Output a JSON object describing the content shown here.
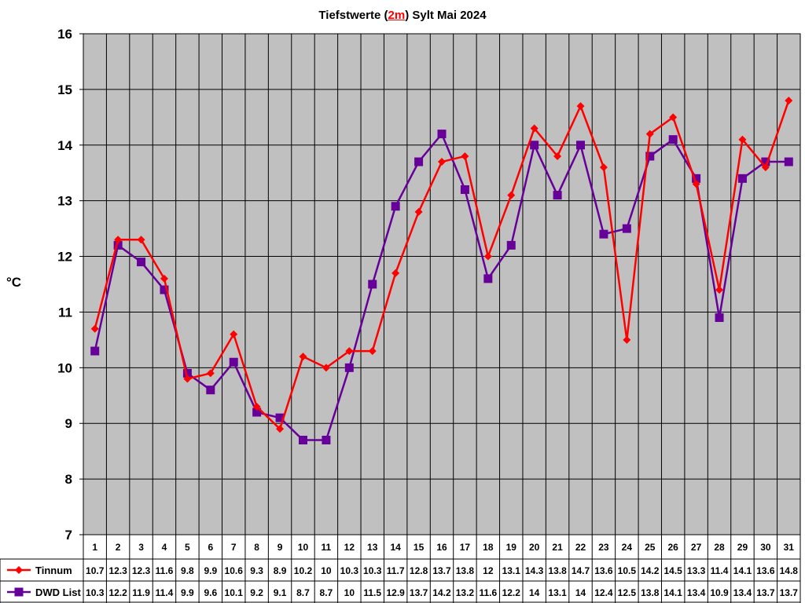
{
  "chart_data": {
    "type": "line",
    "title_parts": [
      "Tiefstwerte (",
      "2m",
      ") Sylt Mai 2024"
    ],
    "ylabel": "°C",
    "xlabel": "",
    "ylim": [
      7,
      16
    ],
    "yticks": [
      7,
      8,
      9,
      10,
      11,
      12,
      13,
      14,
      15,
      16
    ],
    "grid": true,
    "legend_position": "bottom-left (data table)",
    "plot_background": "#c0c0c0",
    "categories": [
      "1",
      "2",
      "3",
      "4",
      "5",
      "6",
      "7",
      "8",
      "9",
      "10",
      "11",
      "12",
      "13",
      "14",
      "15",
      "16",
      "17",
      "18",
      "19",
      "20",
      "21",
      "22",
      "23",
      "24",
      "25",
      "26",
      "27",
      "28",
      "29",
      "30",
      "31"
    ],
    "series": [
      {
        "name": "Tinnum",
        "color": "#ff0000",
        "marker": "diamond",
        "values": [
          10.7,
          12.3,
          12.3,
          11.6,
          9.8,
          9.9,
          10.6,
          9.3,
          8.9,
          10.2,
          10,
          10.3,
          10.3,
          11.7,
          12.8,
          13.7,
          13.8,
          12,
          13.1,
          14.3,
          13.8,
          14.7,
          13.6,
          10.5,
          14.2,
          14.5,
          13.3,
          11.4,
          14.1,
          13.6,
          14.8
        ]
      },
      {
        "name": "DWD List",
        "color": "#660099",
        "marker": "square",
        "values": [
          10.3,
          12.2,
          11.9,
          11.4,
          9.9,
          9.6,
          10.1,
          9.2,
          9.1,
          8.7,
          8.7,
          10,
          11.5,
          12.9,
          13.7,
          14.2,
          13.2,
          11.6,
          12.2,
          14,
          13.1,
          14,
          12.4,
          12.5,
          13.8,
          14.1,
          13.4,
          10.9,
          13.4,
          13.7,
          13.7
        ]
      }
    ]
  }
}
